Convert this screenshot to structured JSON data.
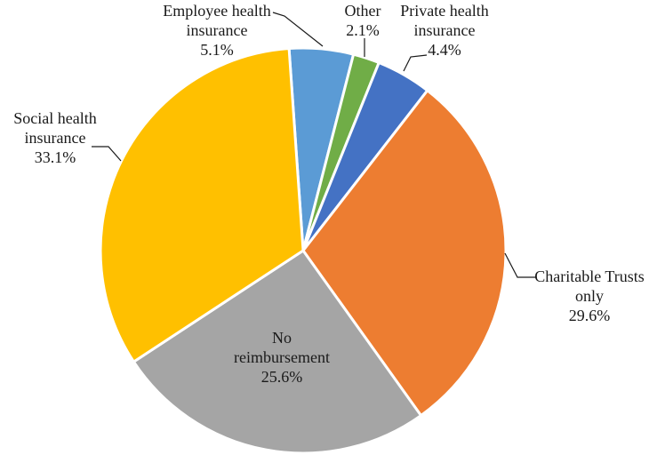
{
  "chart_data": {
    "type": "pie",
    "start_angle_deg": -4,
    "direction": "clockwise",
    "slice_border": "#ffffff",
    "slices": [
      {
        "label_lines": [
          "Employee health",
          "insurance"
        ],
        "value": 5.1,
        "value_label": "5.1%",
        "color": "#5B9BD5"
      },
      {
        "label_lines": [
          "Other"
        ],
        "value": 2.1,
        "value_label": "2.1%",
        "color": "#70AD47"
      },
      {
        "label_lines": [
          "Private health",
          "insurance"
        ],
        "value": 4.4,
        "value_label": "4.4%",
        "color": "#4472C4"
      },
      {
        "label_lines": [
          "Charitable Trusts",
          "only"
        ],
        "value": 29.6,
        "value_label": "29.6%",
        "color": "#ED7D31"
      },
      {
        "label_lines": [
          "No",
          "reimbursement"
        ],
        "value": 25.6,
        "value_label": "25.6%",
        "color": "#A5A5A5"
      },
      {
        "label_lines": [
          "Social health",
          "insurance"
        ],
        "value": 33.1,
        "value_label": "33.1%",
        "color": "#FFC000"
      }
    ]
  }
}
